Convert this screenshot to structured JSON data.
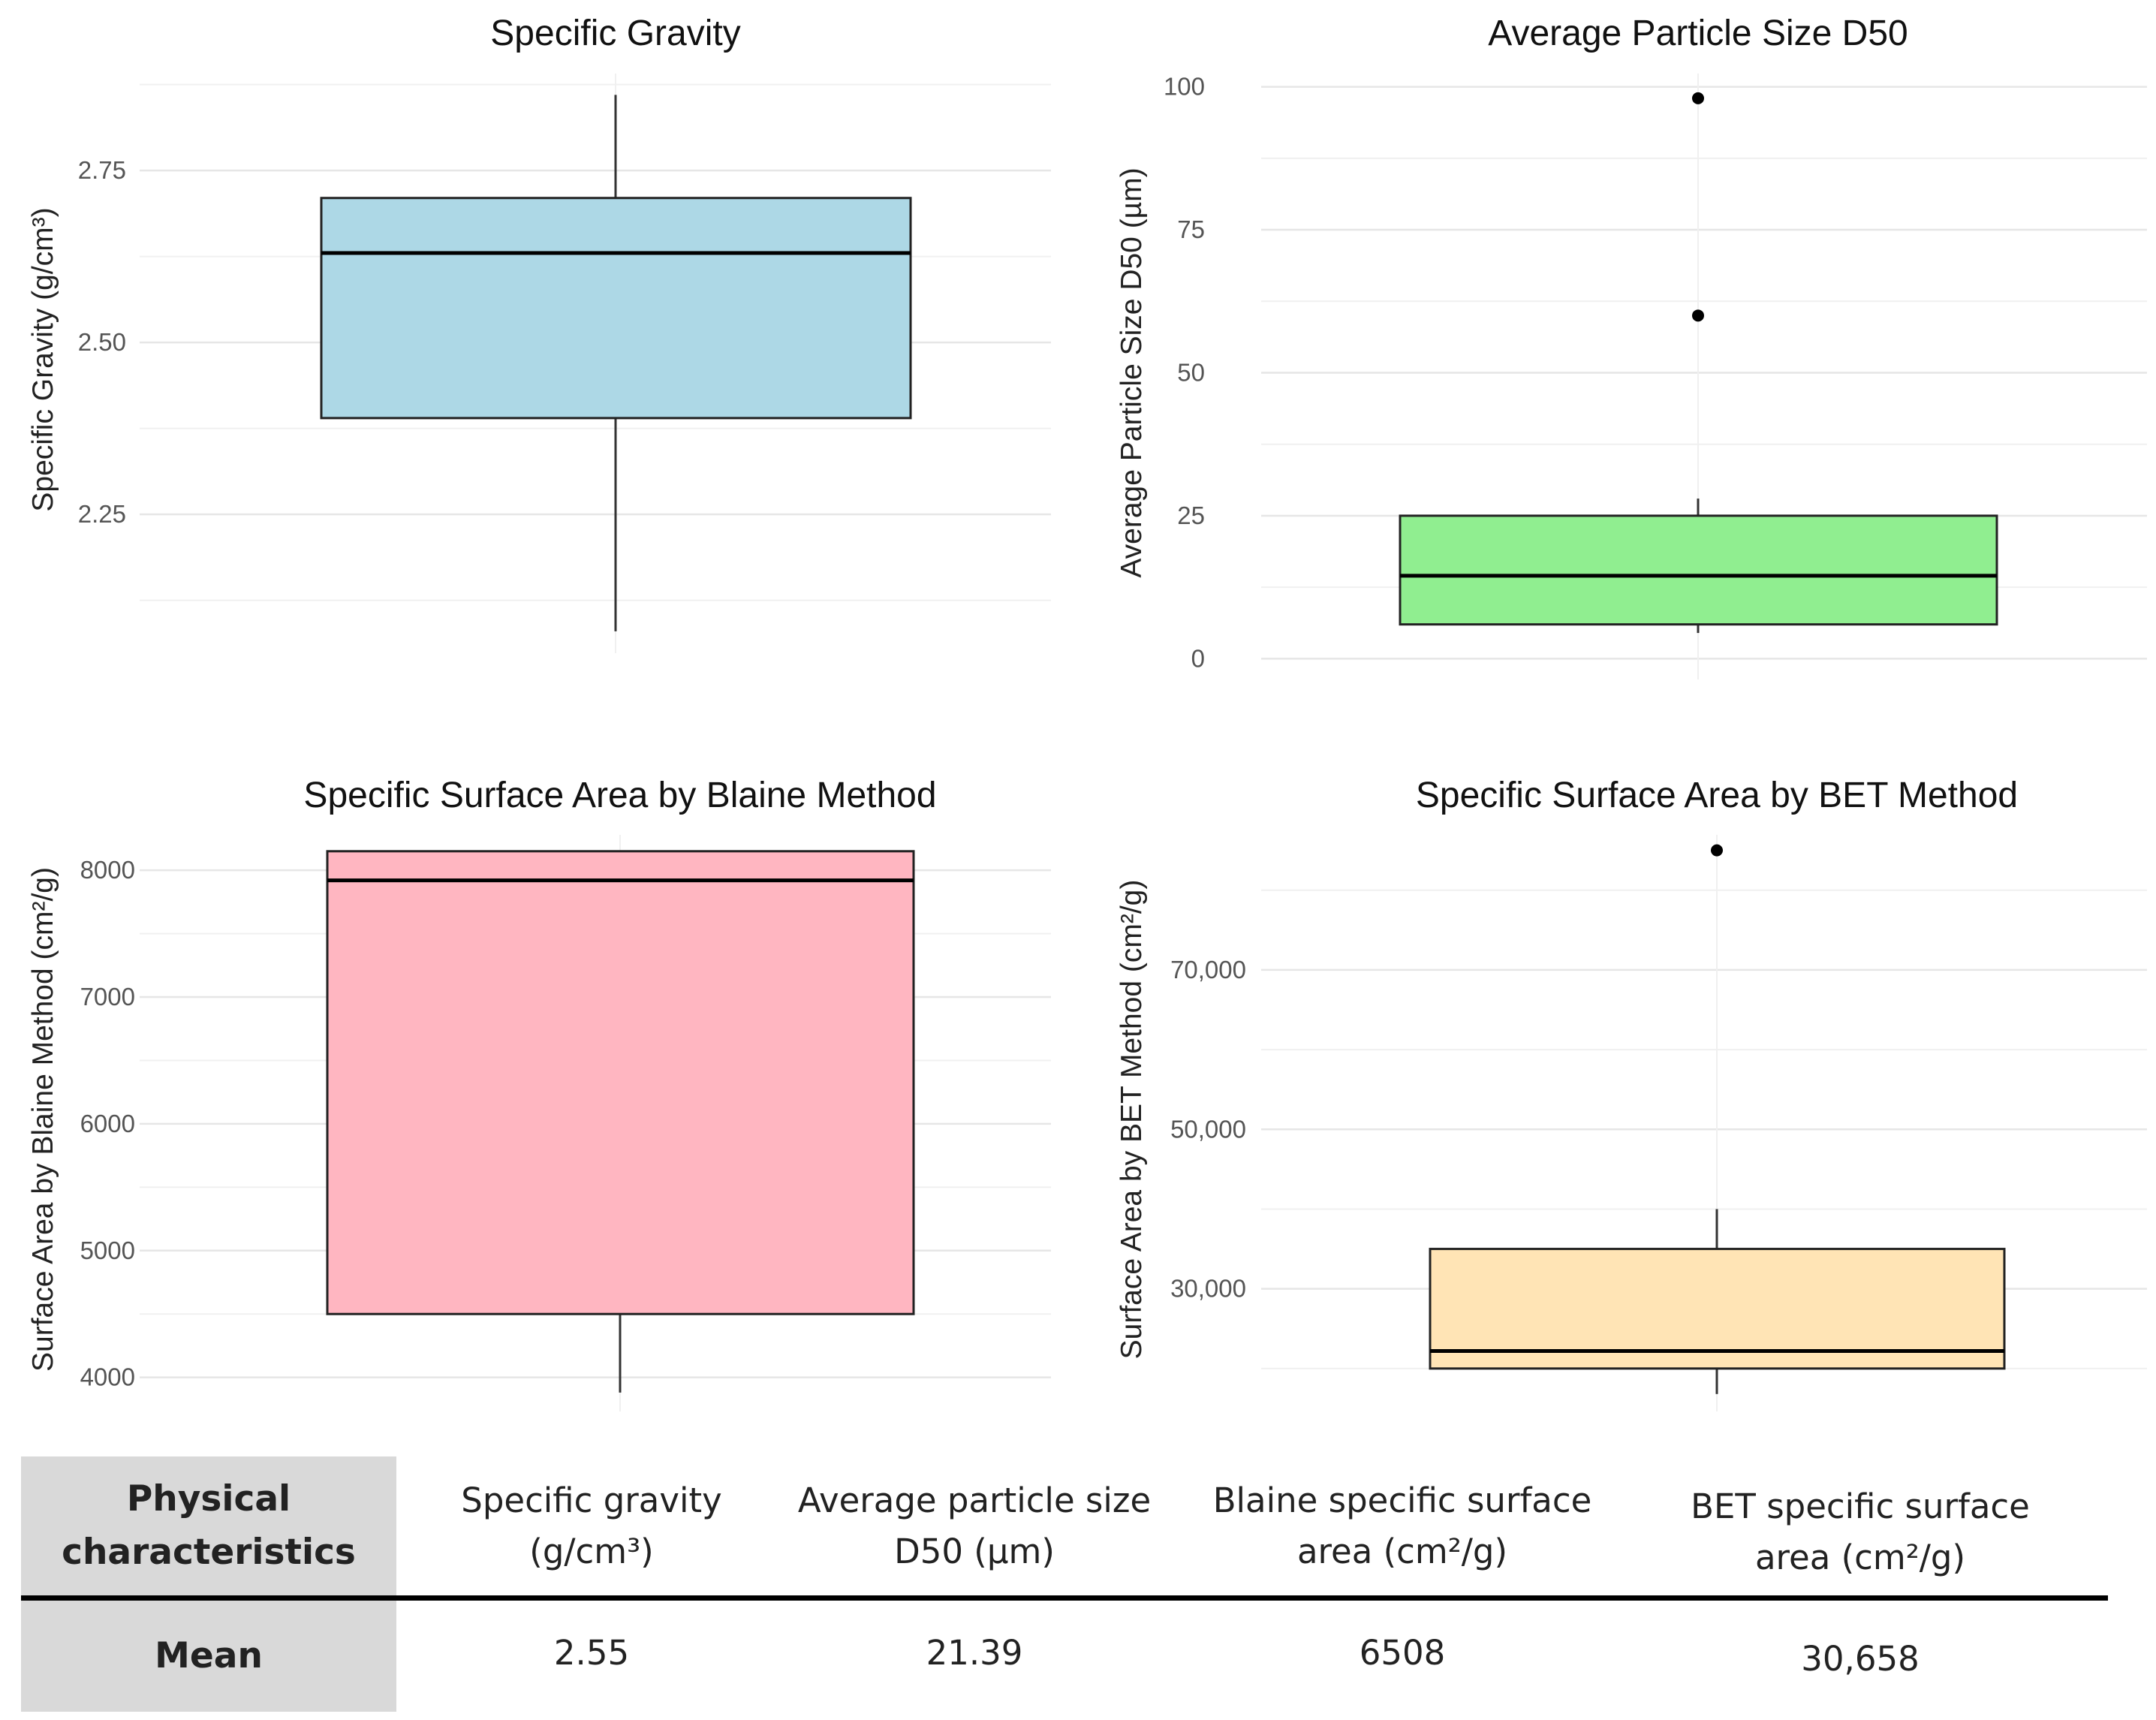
{
  "chart_data": [
    {
      "type": "boxplot",
      "title": "Specific Gravity",
      "ylabel": "Specific Gravity (g/cm³)",
      "xlabel": "",
      "ylim": [
        2.07,
        2.88
      ],
      "yticks": [
        2.25,
        2.5,
        2.75
      ],
      "tick_labels": [
        "2.25",
        "2.50",
        "2.75"
      ],
      "minor_ticks": [
        2.125,
        2.375,
        2.625,
        2.875
      ],
      "box": {
        "whisker_low": 2.08,
        "q1": 2.39,
        "median": 2.63,
        "q3": 2.71,
        "whisker_high": 2.86,
        "outliers": []
      },
      "fill": "#add8e6"
    },
    {
      "type": "boxplot",
      "title": "Average Particle Size D50",
      "ylabel": "Average Particle Size D50 (µm)",
      "xlabel": "",
      "ylim": [
        -1,
        101
      ],
      "yticks": [
        0,
        25,
        50,
        75,
        100
      ],
      "tick_labels": [
        "0",
        "25",
        "50",
        "75",
        "100"
      ],
      "minor_ticks": [
        12.5,
        37.5,
        62.5,
        87.5
      ],
      "box": {
        "whisker_low": 4.5,
        "q1": 6,
        "median": 14.5,
        "q3": 25,
        "whisker_high": 28,
        "outliers": [
          60,
          98
        ]
      },
      "fill": "#90ee90"
    },
    {
      "type": "boxplot",
      "title": "Specific Surface Area by Blaine Method",
      "ylabel": "Surface Area by Blaine Method (cm²/g)",
      "xlabel": "",
      "ylim": [
        3850,
        8220
      ],
      "yticks": [
        4000,
        5000,
        6000,
        7000,
        8000
      ],
      "tick_labels": [
        "4000",
        "5000",
        "6000",
        "7000",
        "8000"
      ],
      "minor_ticks": [
        4500,
        5500,
        6500,
        7500
      ],
      "box": {
        "whisker_low": 3880,
        "q1": 4500,
        "median": 7920,
        "q3": 8150,
        "whisker_high": 8150,
        "outliers": []
      },
      "fill": "#ffb6c1"
    },
    {
      "type": "boxplot",
      "title": "Specific Surface Area by BET Method",
      "ylabel": "Surface Area by BET Method (cm²/g)",
      "xlabel": "",
      "ylim": [
        16500,
        86000
      ],
      "yticks": [
        30000,
        50000,
        70000
      ],
      "tick_labels": [
        "30,000",
        "50,000",
        "70,000"
      ],
      "minor_ticks": [
        20000,
        40000,
        60000,
        80000
      ],
      "box": {
        "whisker_low": 16800,
        "q1": 20000,
        "median": 22200,
        "q3": 35000,
        "whisker_high": 40000,
        "outliers": [
          85000
        ]
      },
      "fill": "#ffe4b5"
    }
  ],
  "table": {
    "header_label": "Physical characteristics",
    "row_label": "Mean",
    "columns": [
      {
        "label": "Specific gravity (g/cm³)",
        "value": "2.55"
      },
      {
        "label": "Average particle size D50 (µm)",
        "value": "21.39"
      },
      {
        "label": "Blaine specific surface area (cm²/g)",
        "value": "6508"
      },
      {
        "label": "BET specific surface area (cm²/g)",
        "value": "30,658"
      }
    ]
  }
}
